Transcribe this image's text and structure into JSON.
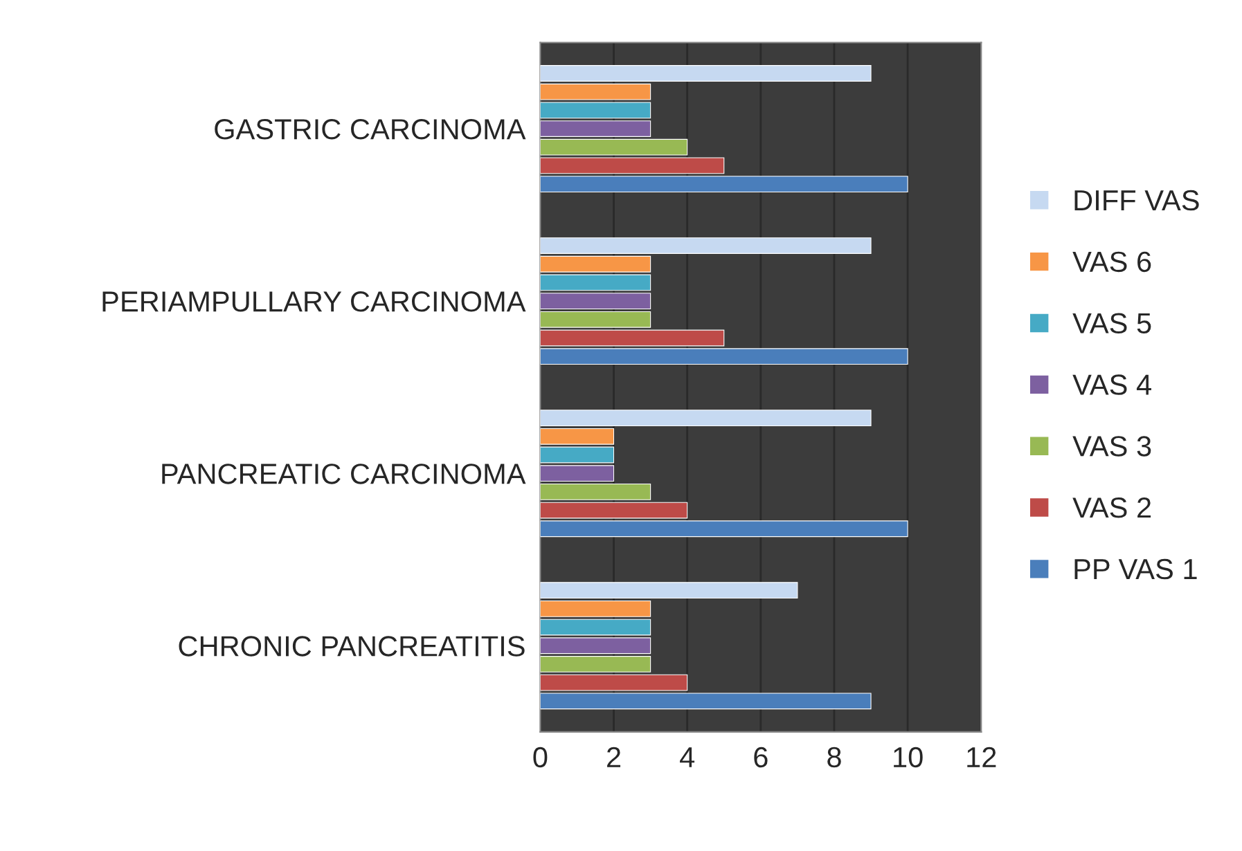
{
  "chart_data": {
    "type": "bar",
    "orientation": "horizontal",
    "categories": [
      "GASTRIC CARCINOMA",
      "PERIAMPULLARY CARCINOMA",
      "PANCREATIC CARCINOMA",
      "CHRONIC PANCREATITIS"
    ],
    "series": [
      {
        "name": "PP VAS 1",
        "color": "#4a7ebb",
        "values": [
          10,
          10,
          10,
          9
        ]
      },
      {
        "name": "VAS 2",
        "color": "#be4b48",
        "values": [
          5,
          5,
          4,
          4
        ]
      },
      {
        "name": "VAS 3",
        "color": "#98b954",
        "values": [
          4,
          3,
          3,
          3
        ]
      },
      {
        "name": "VAS 4",
        "color": "#7d60a0",
        "values": [
          3,
          3,
          2,
          3
        ]
      },
      {
        "name": "VAS 5",
        "color": "#46aac5",
        "values": [
          3,
          3,
          2,
          3
        ]
      },
      {
        "name": "VAS 6",
        "color": "#f79646",
        "values": [
          3,
          3,
          2,
          3
        ]
      },
      {
        "name": "DIFF VAS",
        "color": "#c6d9f1",
        "values": [
          9,
          9,
          9,
          7
        ]
      }
    ],
    "xlim": [
      0,
      12
    ],
    "xticks": [
      0,
      2,
      4,
      6,
      8,
      10,
      12
    ],
    "grid": "x",
    "legend": "right"
  }
}
